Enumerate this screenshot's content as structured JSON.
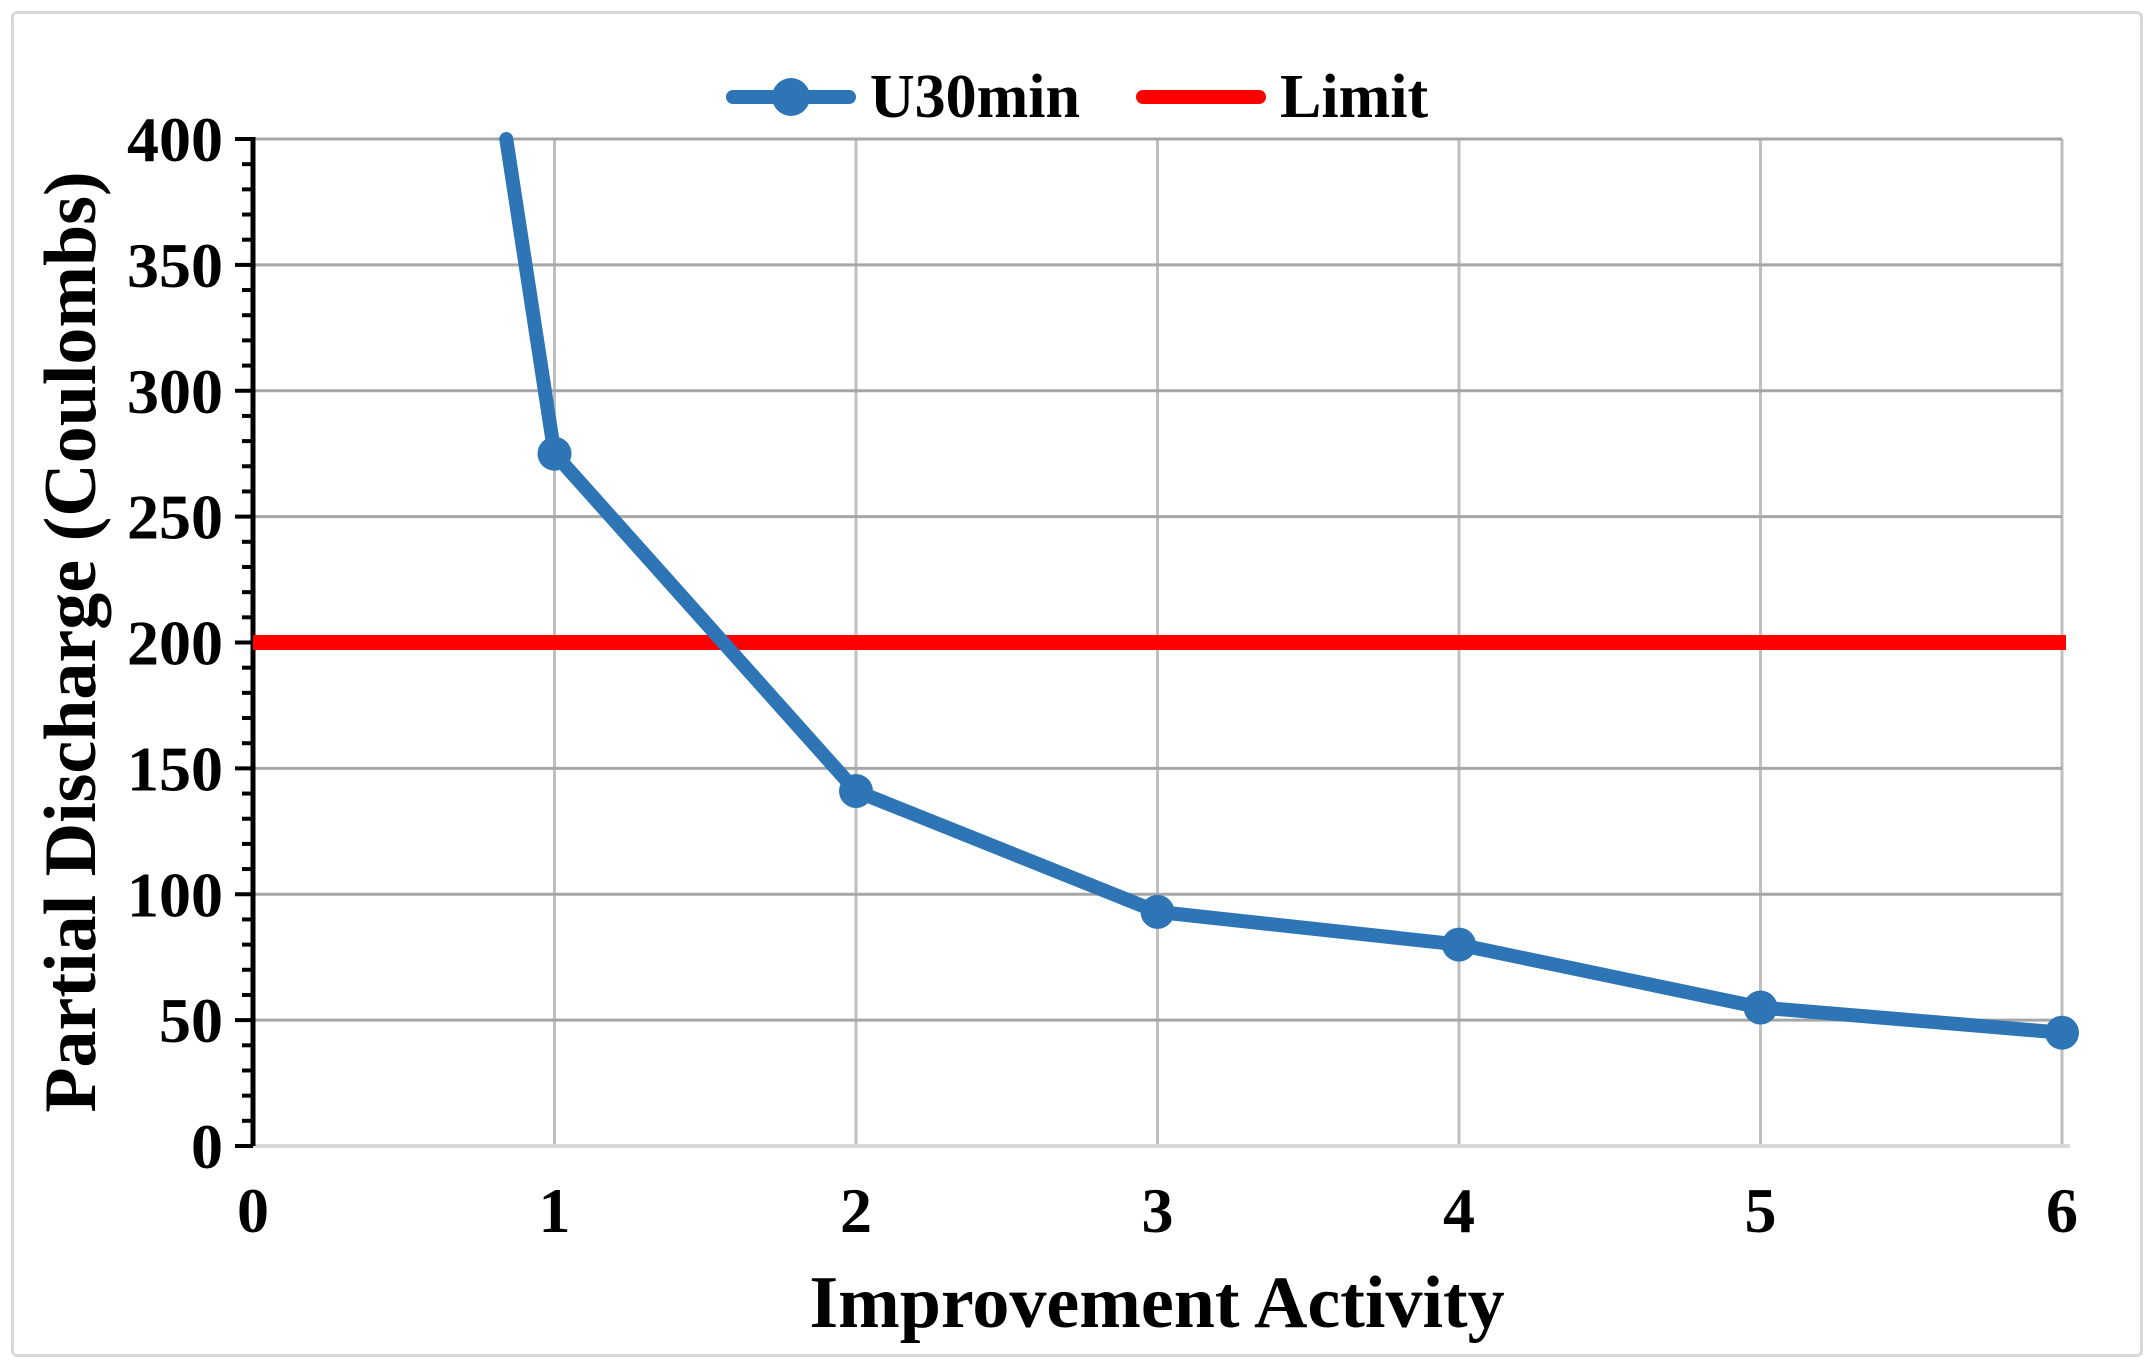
{
  "chart_data": {
    "type": "line",
    "title": "",
    "xlabel": "Improvement Activity",
    "ylabel": "Partial Discharge (Coulombs)",
    "xlim": [
      0,
      6
    ],
    "ylim": [
      0,
      400
    ],
    "x_ticks": [
      0,
      1,
      2,
      3,
      4,
      5,
      6
    ],
    "y_ticks": [
      0,
      50,
      100,
      150,
      200,
      250,
      300,
      350,
      400
    ],
    "y_minor_tick_step": 10,
    "grid": true,
    "legend_position": "top-center",
    "series": [
      {
        "name": "U30min",
        "color": "#2E75B6",
        "marker": "circle",
        "x": [
          1,
          2,
          3,
          4,
          5,
          6
        ],
        "y": [
          275,
          141,
          93,
          80,
          55,
          45
        ],
        "enters_plot_top_at_x": 0.84,
        "offscale_note": "line comes from above y-axis maximum (value at x=0 exceeds 400)"
      },
      {
        "name": "Limit",
        "color": "#FF0000",
        "marker": "none",
        "constant_y": 200,
        "x_span": [
          0,
          6
        ]
      }
    ]
  },
  "legend": {
    "items": [
      {
        "label": "U30min",
        "color": "#2E75B6",
        "shape": "line-with-dot"
      },
      {
        "label": "Limit",
        "color": "#FF0000",
        "shape": "line"
      }
    ]
  },
  "colors": {
    "series_blue": "#2E75B6",
    "limit_red": "#FF0000",
    "h_gridline": "#A6A6A6",
    "v_gridline": "#BFBFBF",
    "baseline": "#D9D9D9",
    "axis": "#000000",
    "frame_border": "#D9D9D9",
    "background": "#FFFFFF"
  }
}
